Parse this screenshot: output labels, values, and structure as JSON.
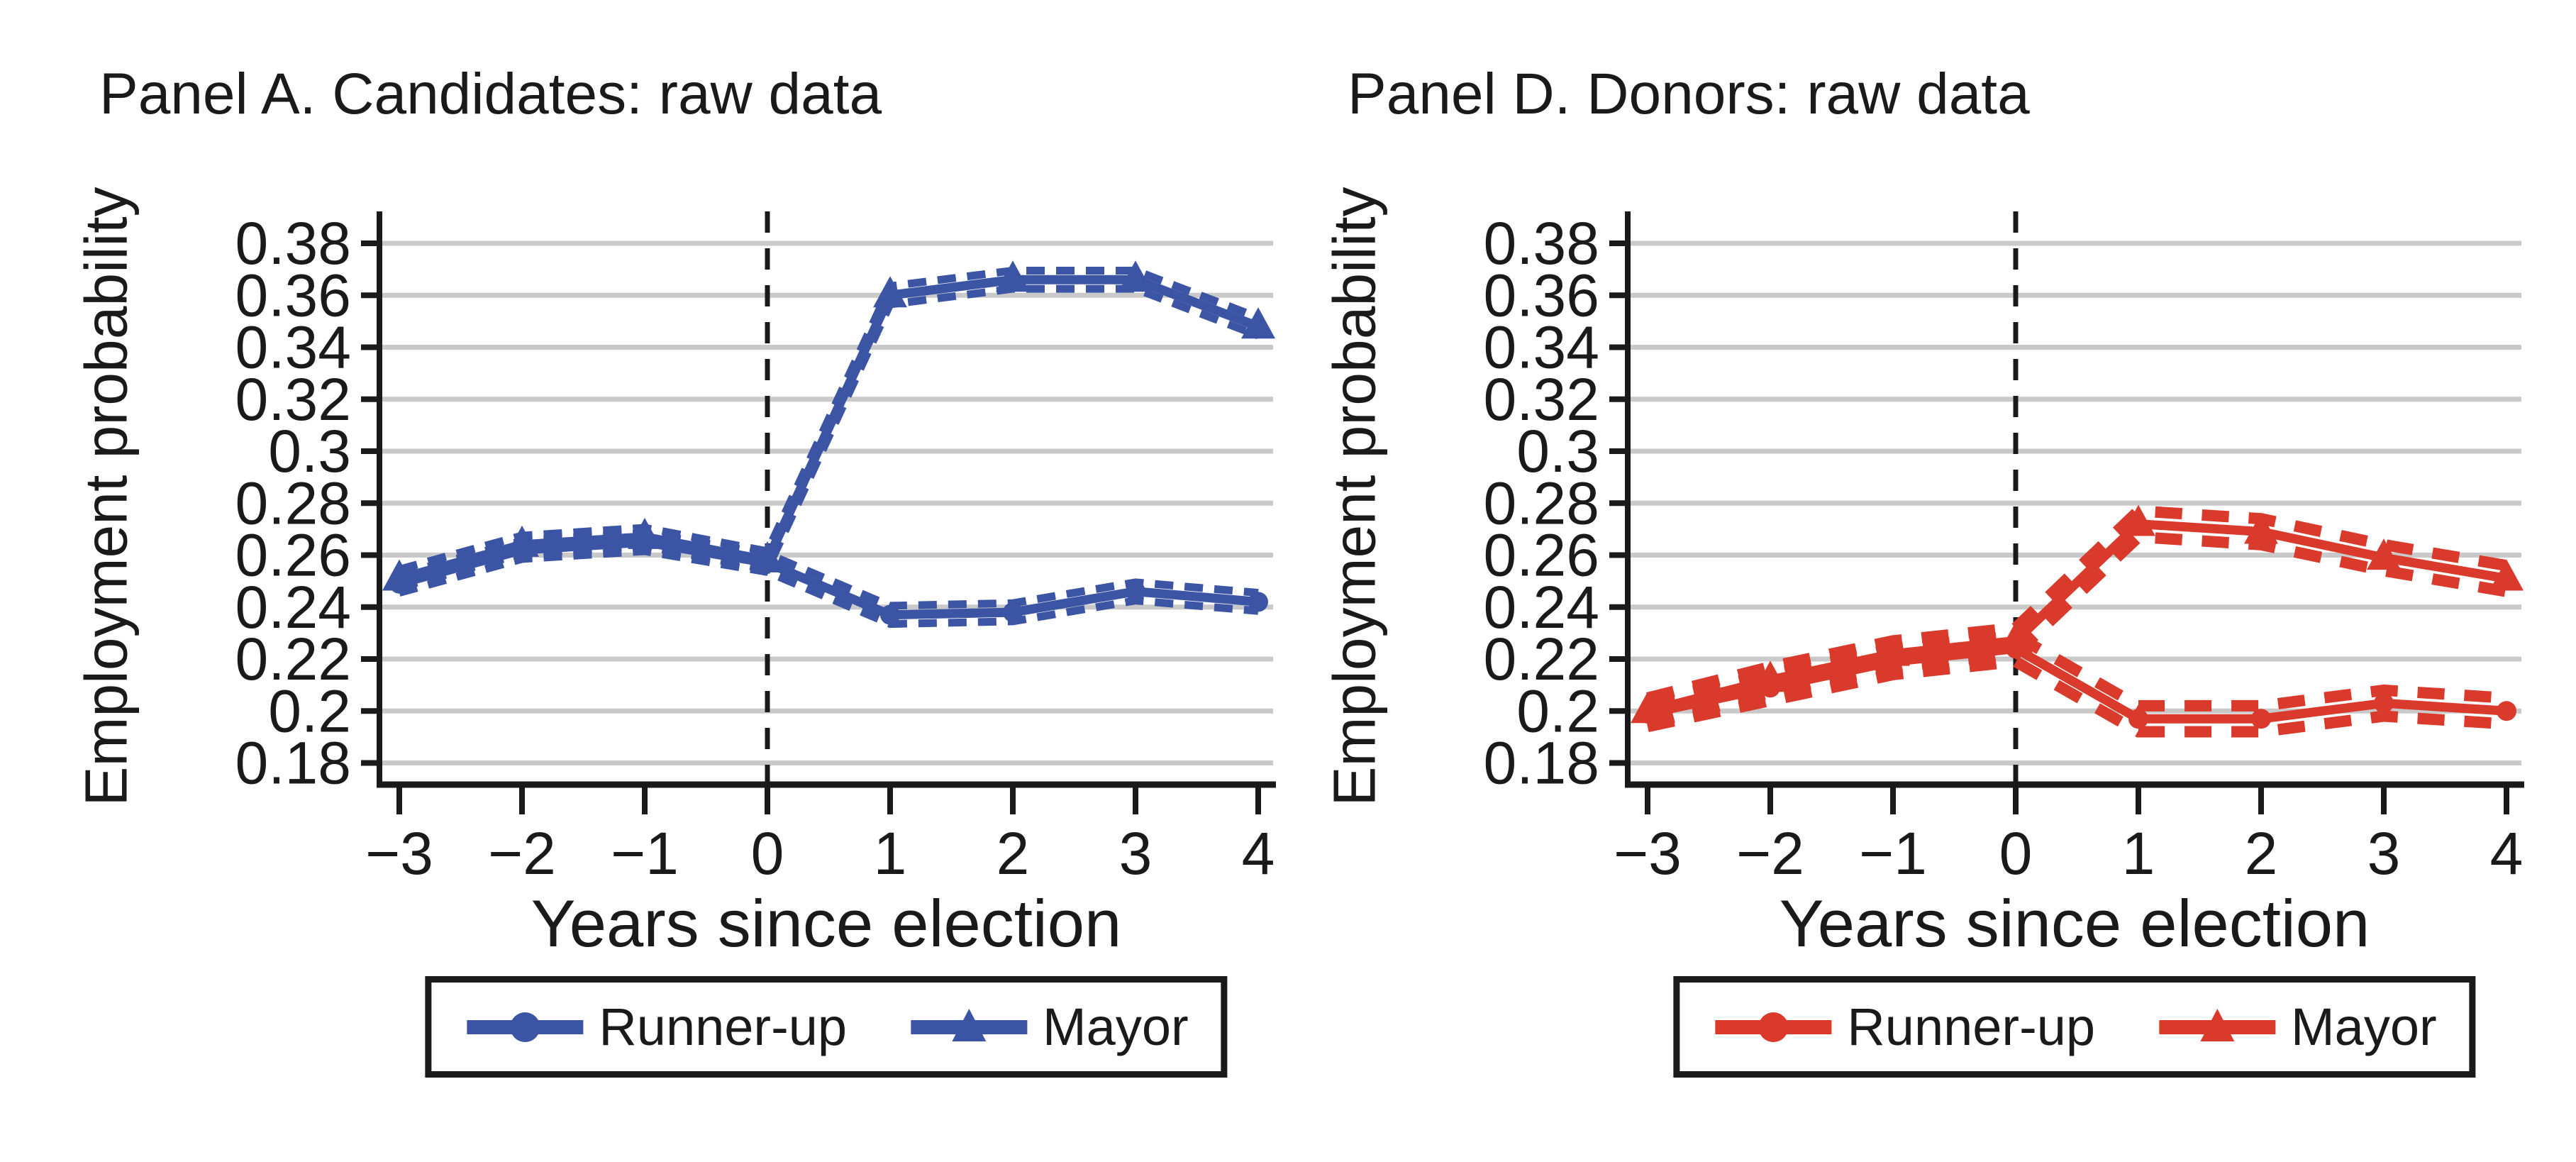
{
  "colors": {
    "candidates_blue": "#3C54A4",
    "donors_red": "#D93A2B",
    "gridline_gray": "#C9C9C9",
    "axis_black": "#1A1A1A",
    "background": "#FFFFFF"
  },
  "chart_data": [
    {
      "type": "line",
      "title": "Panel A. Candidates: raw data",
      "xlabel": "Years since election",
      "ylabel": "Employment probability",
      "x": [
        -3,
        -2,
        -1,
        0,
        1,
        2,
        3,
        4
      ],
      "xticks": [
        "−3",
        "−2",
        "−1",
        "0",
        "1",
        "2",
        "3",
        "4"
      ],
      "ylim": [
        0.18,
        0.38
      ],
      "ytick_step": 0.02,
      "yticks": [
        "0.38",
        "0.36",
        "0.34",
        "0.32",
        "0.3",
        "0.28",
        "0.26",
        "0.24",
        "0.22",
        "0.2",
        "0.18"
      ],
      "grid": true,
      "legend_position": "bottom",
      "vline_x": 0,
      "vline_style": "dashed",
      "color": "#3C54A4",
      "ci_halfwidth": 0.0035,
      "series": [
        {
          "name": "Runner-up",
          "marker": "circle",
          "values": [
            0.249,
            0.262,
            0.265,
            0.257,
            0.237,
            0.238,
            0.246,
            0.242
          ]
        },
        {
          "name": "Mayor",
          "marker": "triangle",
          "values": [
            0.251,
            0.264,
            0.267,
            0.258,
            0.36,
            0.366,
            0.366,
            0.348
          ]
        }
      ]
    },
    {
      "type": "line",
      "title": "Panel D. Donors: raw data",
      "xlabel": "Years since election",
      "ylabel": "Employment probability",
      "x": [
        -3,
        -2,
        -1,
        0,
        1,
        2,
        3,
        4
      ],
      "xticks": [
        "−3",
        "−2",
        "−1",
        "0",
        "1",
        "2",
        "3",
        "4"
      ],
      "ylim": [
        0.18,
        0.38
      ],
      "ytick_step": 0.02,
      "yticks": [
        "0.38",
        "0.36",
        "0.34",
        "0.32",
        "0.3",
        "0.28",
        "0.26",
        "0.24",
        "0.22",
        "0.2",
        "0.18"
      ],
      "grid": true,
      "legend_position": "bottom",
      "vline_x": 0,
      "vline_style": "dashed",
      "color": "#D93A2B",
      "ci_halfwidth": 0.005,
      "series": [
        {
          "name": "Runner-up",
          "marker": "circle",
          "values": [
            0.199,
            0.209,
            0.219,
            0.224,
            0.197,
            0.197,
            0.203,
            0.2
          ]
        },
        {
          "name": "Mayor",
          "marker": "triangle",
          "values": [
            0.2,
            0.212,
            0.222,
            0.227,
            0.272,
            0.269,
            0.259,
            0.251
          ]
        }
      ]
    }
  ]
}
